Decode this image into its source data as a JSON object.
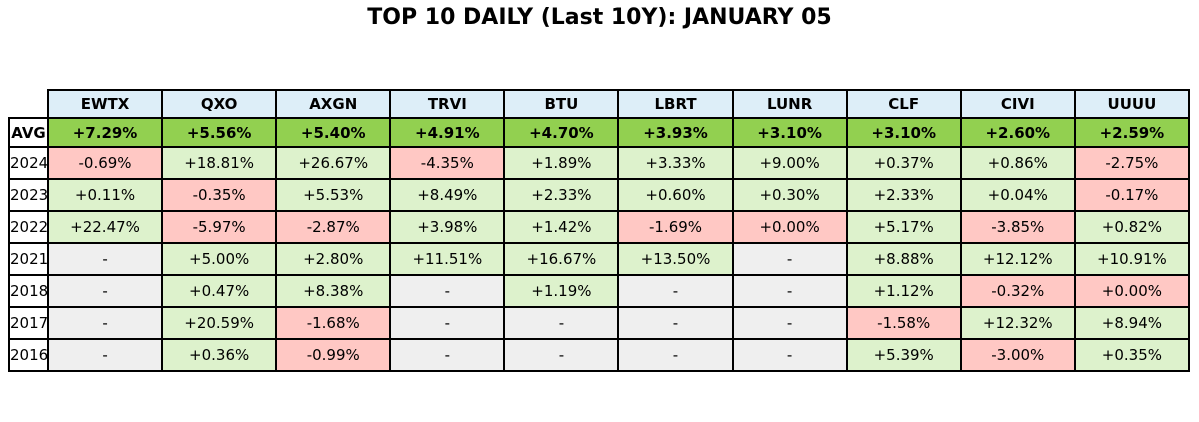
{
  "title": "TOP 10 DAILY (Last 10Y): JANUARY 05",
  "colors": {
    "page_bg": "#ffffff",
    "header_bg": "#ddeef8",
    "avg_row_bg": "#92d050",
    "positive_bg": "#ddf2cc",
    "negative_bg": "#ffc8c4",
    "missing_bg": "#efefef",
    "border": "#000000",
    "text": "#000000"
  },
  "chart_data": {
    "type": "table",
    "title": "TOP 10 DAILY (Last 10Y): JANUARY 05",
    "columns": [
      "",
      "EWTX",
      "QXO",
      "AXGN",
      "TRVI",
      "BTU",
      "LBRT",
      "LUNR",
      "CLF",
      "CIVI",
      "UUUU"
    ],
    "missing_marker": "-",
    "cell_color_rule": "value > 0 -> green, value <= 0 -> pink, missing -> gray",
    "rows": [
      {
        "label": "AVG",
        "values": [
          "+7.29%",
          "+5.56%",
          "+5.40%",
          "+4.91%",
          "+4.70%",
          "+3.93%",
          "+3.10%",
          "+3.10%",
          "+2.60%",
          "+2.59%"
        ]
      },
      {
        "label": "2024",
        "values": [
          "-0.69%",
          "+18.81%",
          "+26.67%",
          "-4.35%",
          "+1.89%",
          "+3.33%",
          "+9.00%",
          "+0.37%",
          "+0.86%",
          "-2.75%"
        ]
      },
      {
        "label": "2023",
        "values": [
          "+0.11%",
          "-0.35%",
          "+5.53%",
          "+8.49%",
          "+2.33%",
          "+0.60%",
          "+0.30%",
          "+2.33%",
          "+0.04%",
          "-0.17%"
        ]
      },
      {
        "label": "2022",
        "values": [
          "+22.47%",
          "-5.97%",
          "-2.87%",
          "+3.98%",
          "+1.42%",
          "-1.69%",
          "+0.00%",
          "+5.17%",
          "-3.85%",
          "+0.82%"
        ]
      },
      {
        "label": "2021",
        "values": [
          "-",
          "+5.00%",
          "+2.80%",
          "+11.51%",
          "+16.67%",
          "+13.50%",
          "-",
          "+8.88%",
          "+12.12%",
          "+10.91%"
        ]
      },
      {
        "label": "2018",
        "values": [
          "-",
          "+0.47%",
          "+8.38%",
          "-",
          "+1.19%",
          "-",
          "-",
          "+1.12%",
          "-0.32%",
          "+0.00%"
        ]
      },
      {
        "label": "2017",
        "values": [
          "-",
          "+20.59%",
          "-1.68%",
          "-",
          "-",
          "-",
          "-",
          "-1.58%",
          "+12.32%",
          "+8.94%"
        ]
      },
      {
        "label": "2016",
        "values": [
          "-",
          "+0.36%",
          "-0.99%",
          "-",
          "-",
          "-",
          "-",
          "+5.39%",
          "-3.00%",
          "+0.35%"
        ]
      }
    ]
  }
}
